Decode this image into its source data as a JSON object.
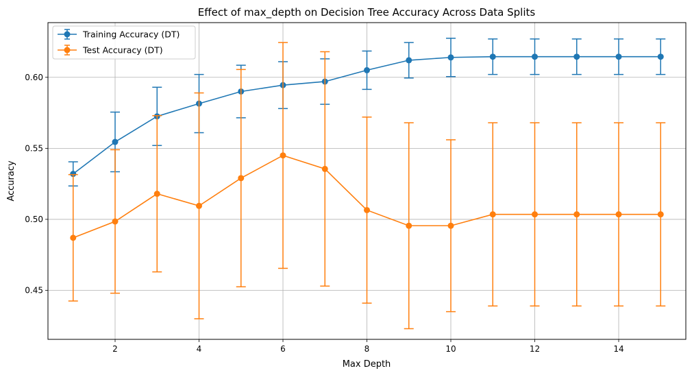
{
  "chart_data": {
    "type": "line",
    "title": "Effect of max_depth on Decision Tree Accuracy Across Data Splits",
    "xlabel": "Max Depth",
    "ylabel": "Accuracy",
    "xlim": [
      0.4,
      15.6
    ],
    "ylim": [
      0.4155,
      0.6385
    ],
    "x_ticks": [
      2,
      4,
      6,
      8,
      10,
      12,
      14
    ],
    "y_ticks": [
      0.45,
      0.5,
      0.55,
      0.6
    ],
    "y_tick_labels": [
      "0.45",
      "0.50",
      "0.55",
      "0.60"
    ],
    "grid": true,
    "legend_position": "top-left",
    "x": [
      1,
      2,
      3,
      4,
      5,
      6,
      7,
      8,
      9,
      10,
      11,
      12,
      13,
      14,
      15
    ],
    "series": [
      {
        "name": "Training Accuracy (DT)",
        "color": "#1f77b4",
        "values": [
          0.532,
          0.5545,
          0.5725,
          0.5815,
          0.59,
          0.5945,
          0.597,
          0.605,
          0.612,
          0.614,
          0.6145,
          0.6145,
          0.6145,
          0.6145,
          0.6145
        ],
        "errors": [
          0.0085,
          0.021,
          0.0205,
          0.0205,
          0.0185,
          0.0165,
          0.016,
          0.0135,
          0.0125,
          0.0135,
          0.0125,
          0.0125,
          0.0125,
          0.0125,
          0.0125
        ]
      },
      {
        "name": "Test Accuracy (DT)",
        "color": "#ff7f0e",
        "values": [
          0.487,
          0.4985,
          0.518,
          0.5095,
          0.529,
          0.545,
          0.5355,
          0.5065,
          0.4955,
          0.4955,
          0.5035,
          0.5035,
          0.5035,
          0.5035,
          0.5035
        ],
        "errors": [
          0.0445,
          0.0505,
          0.055,
          0.0795,
          0.0765,
          0.0795,
          0.0825,
          0.0655,
          0.0725,
          0.0605,
          0.0645,
          0.0645,
          0.0645,
          0.0645,
          0.0645
        ]
      }
    ]
  }
}
